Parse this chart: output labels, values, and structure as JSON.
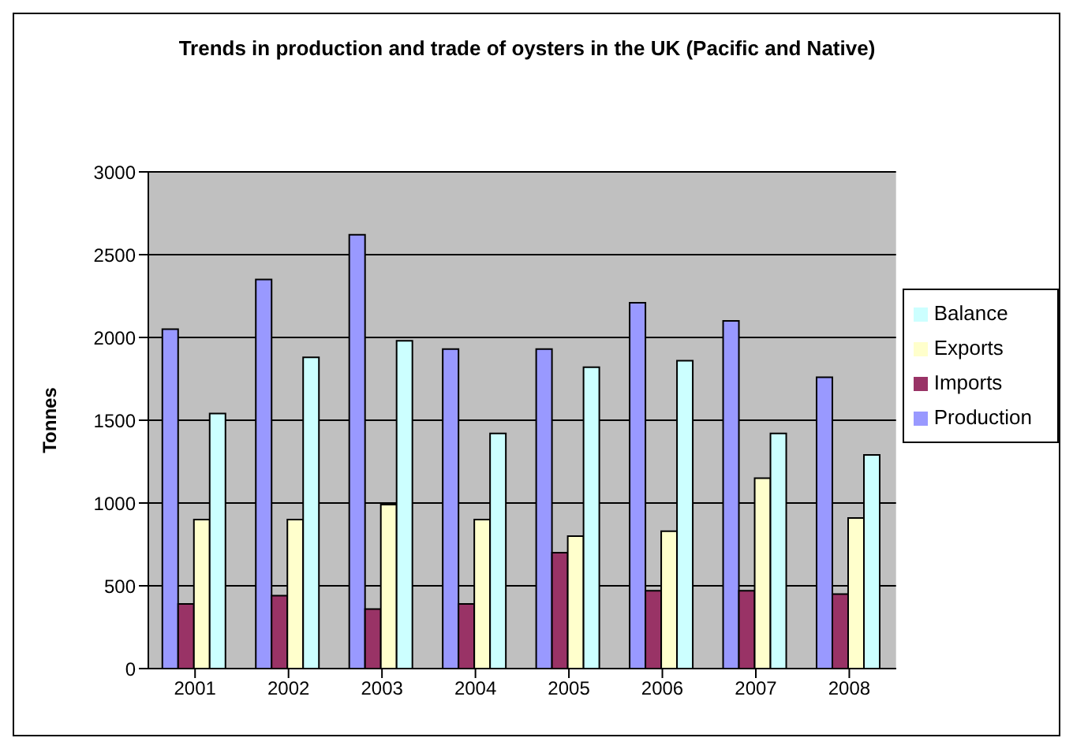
{
  "chart_data": {
    "type": "bar",
    "title": "Trends in production and trade of oysters in the UK (Pacific and Native)",
    "ylabel": "Tonnes",
    "categories": [
      "2001",
      "2002",
      "2003",
      "2004",
      "2005",
      "2006",
      "2007",
      "2008"
    ],
    "series": [
      {
        "name": "Production",
        "color": "#9999ff",
        "values": [
          2050,
          2350,
          2620,
          1930,
          1930,
          2210,
          2100,
          1760
        ]
      },
      {
        "name": "Imports",
        "color": "#993366",
        "values": [
          390,
          440,
          360,
          390,
          700,
          470,
          470,
          450
        ]
      },
      {
        "name": "Exports",
        "color": "#ffffcc",
        "values": [
          900,
          900,
          990,
          900,
          800,
          830,
          1150,
          910
        ]
      },
      {
        "name": "Balance",
        "color": "#ccffff",
        "values": [
          1540,
          1880,
          1980,
          1420,
          1820,
          1860,
          1420,
          1290
        ]
      }
    ],
    "ylim": [
      0,
      3000
    ],
    "yticks": [
      0,
      500,
      1000,
      1500,
      2000,
      2500,
      3000
    ],
    "grid": "y",
    "legend": "right"
  }
}
